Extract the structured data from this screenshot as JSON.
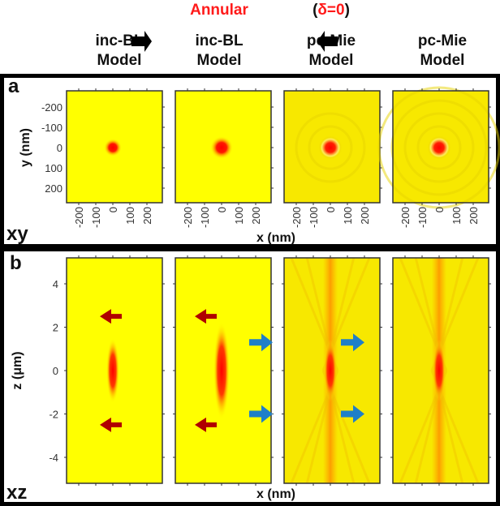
{
  "header": {
    "columns": [
      {
        "line1": "",
        "line2": "inc-BL",
        "line3": "Model"
      },
      {
        "line1": "Annular",
        "line2": "inc-BL",
        "line3": "Model"
      },
      {
        "line1_open": "(",
        "line1": "δ=0",
        "line1_close": ")",
        "line2": "pc-Mie",
        "line3": "Model"
      },
      {
        "line1": "",
        "line2": "pc-Mie",
        "line3": "Model"
      }
    ],
    "highlight_color": "#ff1a1a"
  },
  "panel_a": {
    "label": "a",
    "plane": "xy",
    "y_axis_label": "y (nm)",
    "x_axis_label": "x (nm)",
    "y_ticks": [
      "-200",
      "-100",
      "0",
      "100",
      "200"
    ],
    "x_ticks": [
      "-200",
      "-100",
      "0",
      "100",
      "200"
    ]
  },
  "panel_b": {
    "label": "b",
    "plane": "xz",
    "y_axis_label": "z (μm)",
    "x_axis_label": "x (nm)",
    "y_ticks": [
      "4",
      "2",
      "0",
      "-2",
      "-4"
    ],
    "arrow_colors": {
      "red": "#b00000",
      "blue": "#1f7fc8"
    }
  },
  "colors": {
    "background_yellow": "#ffff00",
    "mie_yellow": "#f7e800",
    "peak_red": "#ff0000"
  }
}
